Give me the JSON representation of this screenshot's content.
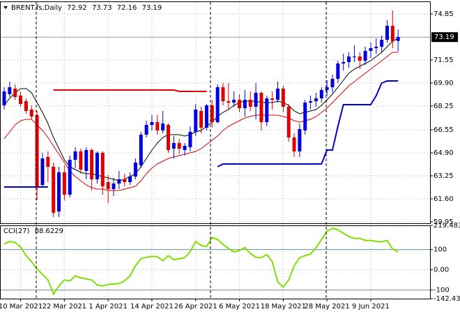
{
  "chart_data": [
    {
      "type": "candlestick",
      "header": "BRENT.fs,Daily",
      "categories": [
        null,
        null,
        null,
        "10 Mar 2021",
        null,
        null,
        null,
        null,
        null,
        null,
        null,
        "22 Mar 2021",
        null,
        null,
        null,
        null,
        null,
        null,
        null,
        "1 Apr 2021",
        null,
        null,
        null,
        null,
        null,
        null,
        null,
        "14 Apr 2021",
        null,
        null,
        null,
        null,
        null,
        null,
        null,
        "26 Apr 2021",
        null,
        null,
        null,
        null,
        null,
        null,
        null,
        "6 May 2021",
        null,
        null,
        null,
        null,
        null,
        null,
        null,
        "18 May 2021",
        null,
        null,
        null,
        null,
        null,
        null,
        null,
        "28 May 2021",
        null,
        null,
        null,
        null,
        null,
        null,
        null,
        "9 Jun 2021",
        null,
        null,
        null,
        null,
        null
      ],
      "open": [
        68.3,
        69.1,
        69.5,
        69.0,
        68.6,
        68.0,
        67.6,
        62.6,
        64.6,
        63.9,
        60.7,
        63.5,
        61.9,
        64.4,
        65.0,
        63.6,
        65.1,
        63.0,
        64.9,
        62.8,
        62.3,
        62.7,
        63.0,
        62.8,
        63.2,
        64.0,
        66.2,
        66.9,
        67.1,
        66.5,
        66.9,
        65.2,
        65.6,
        65.1,
        65.3,
        66.4,
        67.9,
        66.7,
        68.3,
        67.1,
        69.6,
        68.6,
        68.5,
        68.7,
        68.1,
        68.7,
        68.2,
        69.2,
        67.1,
        68.8,
        68.7,
        69.5,
        68.2,
        66.0,
        65.0,
        66.5,
        68.5,
        68.6,
        68.8,
        69.4,
        69.6,
        70.2,
        71.3,
        71.4,
        71.8,
        71.8,
        71.5,
        72.2,
        72.4,
        72.5,
        73.0,
        74.0,
        72.92
      ],
      "high": [
        69.6,
        70.0,
        69.8,
        69.3,
        68.8,
        68.3,
        67.9,
        64.9,
        65.0,
        64.2,
        63.9,
        64.0,
        64.7,
        65.3,
        65.2,
        65.3,
        65.2,
        65.0,
        65.0,
        63.3,
        63.1,
        63.6,
        63.4,
        63.5,
        64.5,
        66.4,
        67.2,
        67.6,
        67.6,
        67.9,
        67.0,
        66.1,
        65.9,
        65.6,
        66.8,
        68.4,
        68.2,
        68.4,
        68.7,
        69.8,
        69.9,
        69.9,
        69.3,
        69.1,
        69.4,
        69.3,
        69.9,
        69.3,
        69.0,
        69.3,
        70.0,
        69.7,
        68.4,
        66.3,
        67.0,
        68.7,
        69.0,
        69.2,
        69.6,
        70.1,
        70.5,
        71.5,
        72.0,
        72.1,
        72.6,
        72.1,
        72.5,
        72.8,
        73.1,
        73.3,
        74.4,
        75.1,
        73.73
      ],
      "low": [
        68.0,
        68.9,
        68.7,
        68.2,
        67.7,
        67.3,
        61.5,
        62.4,
        62.8,
        60.3,
        60.3,
        61.5,
        61.7,
        63.8,
        63.4,
        63.0,
        62.2,
        62.7,
        61.9,
        61.3,
        61.8,
        62.3,
        62.5,
        62.6,
        63.0,
        63.8,
        66.0,
        66.5,
        66.2,
        66.3,
        64.9,
        64.5,
        64.8,
        64.7,
        65.0,
        66.1,
        66.3,
        66.5,
        66.7,
        67.0,
        68.3,
        68.0,
        68.2,
        67.8,
        67.5,
        67.9,
        67.3,
        66.5,
        66.8,
        68.0,
        68.5,
        67.8,
        65.7,
        64.6,
        64.6,
        66.2,
        68.0,
        68.2,
        68.5,
        69.0,
        69.2,
        69.9,
        70.8,
        71.0,
        71.4,
        70.9,
        71.2,
        71.7,
        72.0,
        72.1,
        72.8,
        72.4,
        72.16
      ],
      "close": [
        69.3,
        69.6,
        68.9,
        68.4,
        67.9,
        67.5,
        62.5,
        64.5,
        63.9,
        60.6,
        63.5,
        61.9,
        64.4,
        65.0,
        63.7,
        65.1,
        63.0,
        64.9,
        62.5,
        62.3,
        62.7,
        63.0,
        62.8,
        63.2,
        64.2,
        66.2,
        66.9,
        67.1,
        66.5,
        67.0,
        65.1,
        65.6,
        65.2,
        65.4,
        66.4,
        68.0,
        66.7,
        68.3,
        67.1,
        69.6,
        68.6,
        68.5,
        68.7,
        68.1,
        68.7,
        68.2,
        69.2,
        67.1,
        68.8,
        68.7,
        69.5,
        68.2,
        66.0,
        65.0,
        66.6,
        68.5,
        68.6,
        68.8,
        69.4,
        69.6,
        70.2,
        71.3,
        71.4,
        71.8,
        71.8,
        71.5,
        72.2,
        72.4,
        72.5,
        73.0,
        74.0,
        72.9,
        73.19
      ],
      "bull_color": "#0000e0",
      "bear_color": "#e00000",
      "lines": [
        {
          "color": "#000000",
          "width": 1,
          "values": [
            68.3,
            68.8,
            69.2,
            69.5,
            69.5,
            69.2,
            68.5,
            67.8,
            67.0,
            66.0,
            65.2,
            64.4,
            63.9,
            63.7,
            63.5,
            63.4,
            63.4,
            63.3,
            63.2,
            63.1,
            63.0,
            62.9,
            63.0,
            63.2,
            63.4,
            63.9,
            64.5,
            65.1,
            65.6,
            66.0,
            66.2,
            66.2,
            66.2,
            66.1,
            66.2,
            66.4,
            66.5,
            66.8,
            67.1,
            67.5,
            67.8,
            68.0,
            68.3,
            68.5,
            68.6,
            68.6,
            68.6,
            68.5,
            68.5,
            68.5,
            68.6,
            68.5,
            68.3,
            67.9,
            67.7,
            67.8,
            67.9,
            68.0,
            68.3,
            68.7,
            69.1,
            69.6,
            70.1,
            70.6,
            70.9,
            71.1,
            71.3,
            71.5,
            71.8,
            72.1,
            72.5,
            72.9,
            73.1
          ]
        },
        {
          "color": "#e00000",
          "width": 1,
          "values": [
            65.9,
            66.4,
            66.9,
            67.2,
            67.3,
            67.3,
            66.9,
            66.5,
            66.0,
            65.4,
            64.8,
            64.2,
            63.6,
            63.2,
            62.9,
            62.6,
            62.4,
            62.3,
            62.3,
            62.2,
            62.2,
            62.2,
            62.3,
            62.4,
            62.5,
            62.9,
            63.4,
            63.8,
            64.1,
            64.3,
            64.5,
            64.6,
            64.7,
            64.8,
            64.9,
            65.0,
            65.2,
            65.5,
            65.8,
            66.1,
            66.5,
            66.8,
            67.0,
            67.2,
            67.4,
            67.5,
            67.6,
            67.6,
            67.6,
            67.6,
            67.6,
            67.5,
            67.4,
            67.2,
            67.1,
            67.2,
            67.3,
            67.5,
            67.8,
            68.1,
            68.5,
            68.9,
            69.3,
            69.7,
            70.0,
            70.3,
            70.6,
            70.9,
            71.2,
            71.5,
            71.8,
            72.1,
            72.1
          ]
        },
        {
          "color": "#0000c8",
          "width": 2,
          "values": [
            62.45,
            62.45,
            62.45,
            62.45,
            62.45,
            62.45,
            62.45,
            62.45,
            62.45,
            null,
            null,
            null,
            null,
            null,
            null,
            null,
            null,
            null,
            null,
            null,
            null,
            null,
            null,
            null,
            null,
            null,
            null,
            null,
            null,
            null,
            null,
            null,
            null,
            null,
            null,
            null,
            null,
            null,
            null,
            63.9,
            64.1,
            64.1,
            64.1,
            64.1,
            64.1,
            64.1,
            64.1,
            64.1,
            64.1,
            64.1,
            64.1,
            64.1,
            64.1,
            64.1,
            64.1,
            64.1,
            64.1,
            64.1,
            64.1,
            65.1,
            65.1,
            66.8,
            68.35,
            68.35,
            68.35,
            68.35,
            68.35,
            68.35,
            69.0,
            69.9,
            70.05,
            70.05,
            70.05
          ]
        },
        {
          "color": "#e00000",
          "width": 2,
          "values": [
            null,
            null,
            null,
            null,
            null,
            null,
            null,
            null,
            null,
            69.4,
            69.4,
            69.4,
            69.4,
            69.4,
            69.4,
            69.4,
            69.4,
            69.4,
            69.4,
            69.4,
            69.4,
            69.4,
            69.4,
            69.4,
            69.4,
            69.4,
            69.4,
            69.4,
            69.4,
            69.4,
            69.4,
            69.4,
            69.3,
            69.3,
            69.3,
            69.3,
            69.3,
            69.3,
            null,
            null,
            null,
            null,
            null,
            null,
            null,
            null,
            null,
            null,
            null,
            null,
            null,
            null,
            null,
            null,
            null,
            null,
            null,
            null,
            null,
            null,
            null,
            null,
            null,
            null,
            null,
            null,
            null,
            null,
            null,
            null,
            null,
            null,
            null
          ]
        }
      ],
      "ylim": [
        59.85,
        75.75
      ],
      "yticks": [
        74.85,
        71.55,
        {
          "value": 69.9,
          "label": "69.90"
        },
        68.25,
        66.55,
        {
          "value": 64.9,
          "label": "64.90"
        },
        63.25,
        {
          "value": 61.6,
          "label": "61.60"
        },
        59.95
      ],
      "grid": true
    },
    {
      "type": "line",
      "label": "CCI(27)",
      "color": "#7ce000",
      "values": [
        128,
        140,
        135,
        112,
        70,
        40,
        5,
        -22,
        -50,
        -120,
        -80,
        -50,
        -55,
        -30,
        -40,
        -45,
        -50,
        -75,
        -80,
        -72,
        -70,
        -68,
        -55,
        -30,
        20,
        55,
        62,
        66,
        65,
        45,
        70,
        50,
        55,
        60,
        90,
        140,
        120,
        115,
        160,
        150,
        125,
        105,
        88,
        95,
        110,
        80,
        62,
        60,
        75,
        40,
        -60,
        -85,
        -50,
        20,
        60,
        70,
        78,
        110,
        150,
        190,
        205,
        198,
        180,
        165,
        155,
        155,
        145,
        145,
        140,
        138,
        145,
        103,
        88.6229
      ],
      "levels": [
        100,
        -100
      ],
      "ylim": [
        -142.432,
        219.4838
      ],
      "yticks": [
        219.4838,
        100,
        {
          "value": 0,
          "label": "0.00"
        },
        -100,
        -142.432
      ],
      "grid": true
    }
  ]
}
